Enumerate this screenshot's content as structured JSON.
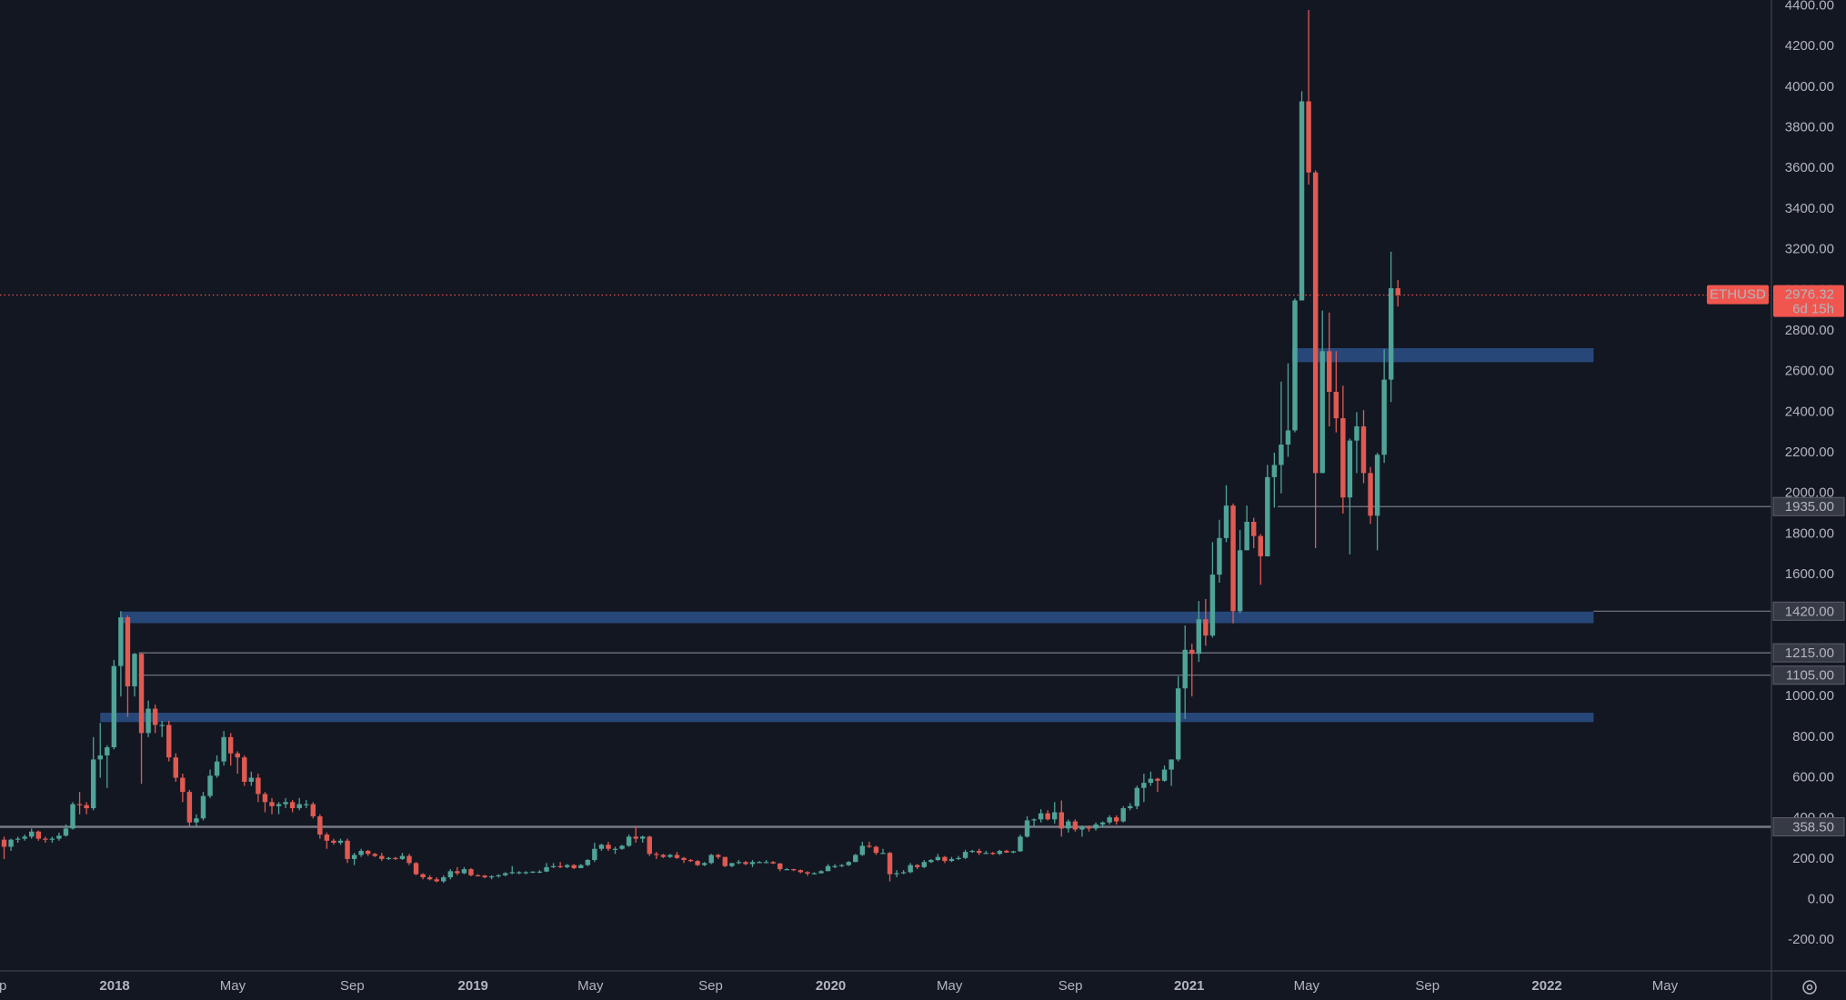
{
  "chart_data": {
    "type": "candlestick",
    "symbol": "ETHUSD",
    "up_color": "#4fa397",
    "down_color": "#e05a52",
    "zone_color": "#2d5088",
    "level_color": "#787b86",
    "last_color": "#f0564e",
    "open": [
      295,
      260,
      295,
      300,
      310,
      335,
      300,
      295,
      300,
      315,
      350,
      470,
      465,
      450,
      690,
      710,
      750,
      1150,
      1390,
      1050,
      1210,
      820,
      940,
      860,
      860,
      700,
      600,
      530,
      380,
      400,
      510,
      610,
      680,
      800,
      720,
      700,
      580,
      600,
      520,
      480,
      460,
      470,
      480,
      450,
      470,
      470,
      410,
      320,
      290,
      280,
      290,
      200,
      220,
      240,
      225,
      215,
      200,
      205,
      200,
      215,
      180,
      125,
      110,
      100,
      90,
      110,
      140,
      130,
      150,
      120,
      118,
      110,
      115,
      120,
      130,
      135,
      135,
      135,
      138,
      138,
      160,
      165,
      160,
      170,
      155,
      170,
      195,
      250,
      270,
      250,
      250,
      265,
      310,
      300,
      310,
      225,
      220,
      210,
      220,
      205,
      195,
      190,
      170,
      180,
      220,
      210,
      165,
      180,
      185,
      175,
      185,
      185,
      185,
      178,
      150,
      150,
      145,
      135,
      128,
      130,
      140,
      165,
      165,
      170,
      185,
      220,
      265,
      260,
      230,
      230,
      125,
      130,
      135,
      170,
      160,
      185,
      195,
      210,
      190,
      200,
      205,
      235,
      240,
      230,
      230,
      225,
      240,
      232,
      238,
      310,
      390,
      395,
      425,
      395,
      430,
      350,
      385,
      345,
      355,
      350,
      370,
      380,
      405,
      385,
      450,
      460,
      550,
      575,
      595,
      585,
      640,
      690,
      1040,
      1230,
      1210,
      1380,
      1300,
      1600,
      1780,
      1940,
      1420,
      1720,
      1860,
      1790,
      1690,
      2080,
      2140,
      2240,
      2310,
      2950,
      3930,
      3580,
      2100,
      2700,
      2500,
      2370,
      1980,
      2260,
      2330,
      2100,
      1890,
      2190,
      2560,
      3010
    ],
    "high": [
      310,
      300,
      310,
      320,
      350,
      340,
      310,
      310,
      330,
      370,
      480,
      530,
      480,
      800,
      870,
      760,
      1180,
      1420,
      1400,
      1215,
      1215,
      980,
      960,
      880,
      880,
      720,
      620,
      540,
      420,
      530,
      640,
      710,
      830,
      820,
      730,
      710,
      630,
      620,
      530,
      500,
      480,
      500,
      490,
      500,
      490,
      480,
      420,
      330,
      300,
      300,
      300,
      230,
      250,
      245,
      230,
      230,
      210,
      210,
      230,
      225,
      185,
      130,
      120,
      110,
      120,
      150,
      160,
      160,
      155,
      125,
      122,
      120,
      125,
      135,
      165,
      140,
      140,
      140,
      145,
      180,
      180,
      185,
      175,
      175,
      175,
      200,
      280,
      275,
      285,
      260,
      270,
      320,
      360,
      315,
      315,
      235,
      225,
      225,
      235,
      210,
      200,
      195,
      185,
      225,
      225,
      210,
      180,
      195,
      190,
      195,
      190,
      195,
      190,
      180,
      155,
      152,
      148,
      140,
      135,
      145,
      175,
      175,
      175,
      190,
      225,
      285,
      285,
      265,
      250,
      235,
      145,
      145,
      180,
      175,
      195,
      200,
      225,
      215,
      210,
      215,
      245,
      245,
      250,
      240,
      235,
      245,
      245,
      240,
      320,
      410,
      400,
      445,
      440,
      480,
      488,
      395,
      395,
      365,
      365,
      380,
      385,
      415,
      415,
      460,
      475,
      560,
      620,
      630,
      600,
      660,
      690,
      1100,
      1350,
      1260,
      1470,
      1480,
      1760,
      1870,
      2040,
      1950,
      1820,
      1940,
      1880,
      1800,
      2140,
      2200,
      2550,
      2640,
      2960,
      3980,
      4380,
      3590,
      2900,
      2890,
      2700,
      2530,
      2270,
      2400,
      2410,
      2130,
      2200,
      2710,
      3190,
      3050
    ],
    "low": [
      200,
      240,
      280,
      290,
      300,
      290,
      280,
      280,
      290,
      310,
      345,
      420,
      420,
      440,
      600,
      550,
      740,
      1000,
      900,
      1000,
      570,
      800,
      820,
      800,
      680,
      580,
      480,
      360,
      360,
      390,
      500,
      600,
      660,
      660,
      620,
      560,
      560,
      480,
      430,
      420,
      420,
      450,
      430,
      440,
      450,
      400,
      300,
      250,
      270,
      270,
      180,
      170,
      210,
      215,
      210,
      190,
      195,
      195,
      195,
      170,
      120,
      100,
      95,
      85,
      82,
      100,
      120,
      125,
      115,
      115,
      105,
      100,
      108,
      115,
      125,
      125,
      125,
      130,
      130,
      135,
      155,
      155,
      155,
      150,
      155,
      165,
      185,
      240,
      240,
      225,
      245,
      260,
      280,
      280,
      215,
      200,
      205,
      205,
      200,
      180,
      185,
      165,
      165,
      175,
      200,
      160,
      160,
      175,
      170,
      160,
      180,
      180,
      175,
      140,
      145,
      140,
      130,
      117,
      124,
      128,
      140,
      155,
      160,
      165,
      185,
      215,
      255,
      220,
      225,
      90,
      110,
      125,
      130,
      150,
      155,
      180,
      190,
      180,
      185,
      195,
      200,
      230,
      220,
      225,
      220,
      220,
      230,
      228,
      235,
      305,
      360,
      380,
      390,
      375,
      310,
      330,
      335,
      310,
      335,
      340,
      355,
      370,
      370,
      380,
      440,
      445,
      480,
      560,
      530,
      580,
      560,
      680,
      890,
      1000,
      1170,
      1250,
      1290,
      1560,
      1760,
      1360,
      1410,
      1720,
      1730,
      1550,
      1690,
      1930,
      2000,
      2180,
      2300,
      2950,
      3520,
      1730,
      2100,
      2330,
      2300,
      1900,
      1700,
      2100,
      2050,
      1850,
      1720,
      2150,
      2450,
      2920
    ],
    "close": [
      260,
      295,
      300,
      310,
      335,
      300,
      295,
      300,
      315,
      350,
      470,
      465,
      450,
      690,
      710,
      750,
      1150,
      1390,
      1050,
      1210,
      820,
      940,
      860,
      860,
      700,
      600,
      530,
      380,
      400,
      510,
      610,
      680,
      800,
      720,
      700,
      580,
      600,
      520,
      480,
      460,
      470,
      480,
      450,
      470,
      470,
      410,
      320,
      290,
      280,
      290,
      200,
      220,
      240,
      225,
      215,
      200,
      205,
      200,
      215,
      180,
      125,
      110,
      100,
      90,
      110,
      140,
      130,
      150,
      120,
      118,
      110,
      115,
      120,
      130,
      135,
      135,
      135,
      138,
      138,
      160,
      165,
      160,
      170,
      155,
      170,
      195,
      250,
      270,
      250,
      250,
      265,
      310,
      300,
      310,
      225,
      220,
      210,
      220,
      205,
      195,
      190,
      170,
      180,
      220,
      210,
      165,
      180,
      185,
      175,
      185,
      185,
      185,
      178,
      150,
      150,
      145,
      135,
      128,
      130,
      140,
      165,
      165,
      170,
      185,
      220,
      265,
      260,
      230,
      230,
      125,
      130,
      135,
      170,
      160,
      185,
      195,
      210,
      190,
      200,
      205,
      235,
      240,
      230,
      230,
      225,
      240,
      232,
      238,
      310,
      390,
      395,
      425,
      395,
      430,
      350,
      385,
      345,
      355,
      350,
      370,
      380,
      405,
      385,
      450,
      460,
      550,
      575,
      595,
      585,
      640,
      690,
      1040,
      1230,
      1210,
      1380,
      1300,
      1600,
      1780,
      1940,
      1420,
      1720,
      1860,
      1790,
      1690,
      2080,
      2140,
      2240,
      2310,
      2950,
      3930,
      3580,
      2100,
      2700,
      2500,
      2370,
      1980,
      2260,
      2330,
      2100,
      1890,
      2190,
      2560,
      3010,
      2976.32
    ],
    "xlim": [
      -0.6,
      257.4
    ],
    "xticks": [
      {
        "value": -1.4,
        "label": "Sep"
      },
      {
        "value": 16.1,
        "label": "2018"
      },
      {
        "value": 33.3,
        "label": "May"
      },
      {
        "value": 50.7,
        "label": "Sep"
      },
      {
        "value": 68.3,
        "label": "2019"
      },
      {
        "value": 85.4,
        "label": "May"
      },
      {
        "value": 102.9,
        "label": "Sep"
      },
      {
        "value": 120.4,
        "label": "2020"
      },
      {
        "value": 137.7,
        "label": "May"
      },
      {
        "value": 155.3,
        "label": "Sep"
      },
      {
        "value": 172.6,
        "label": "2021"
      },
      {
        "value": 189.7,
        "label": "May"
      },
      {
        "value": 207.3,
        "label": "Sep"
      },
      {
        "value": 224.7,
        "label": "2022"
      },
      {
        "value": 241.9,
        "label": "May"
      }
    ],
    "ylim": [
      -351,
      4429
    ],
    "yticks": [
      {
        "value": -200,
        "label": "-200.00"
      },
      {
        "value": 0,
        "label": "0.00"
      },
      {
        "value": 200,
        "label": "200.00"
      },
      {
        "value": 400,
        "label": "400.00"
      },
      {
        "value": 600,
        "label": "600.00"
      },
      {
        "value": 800,
        "label": "800.00"
      },
      {
        "value": 1000,
        "label": "1000.00"
      },
      {
        "value": 1200,
        "label": "1200.00"
      },
      {
        "value": 1400,
        "label": "1400.00"
      },
      {
        "value": 1600,
        "label": "1600.00"
      },
      {
        "value": 1800,
        "label": "1800.00"
      },
      {
        "value": 2000,
        "label": "2000.00"
      },
      {
        "value": 2200,
        "label": "2200.00"
      },
      {
        "value": 2400,
        "label": "2400.00"
      },
      {
        "value": 2600,
        "label": "2600.00"
      },
      {
        "value": 2800,
        "label": "2800.00"
      },
      {
        "value": 3000,
        "label": "3000.00"
      },
      {
        "value": 3200,
        "label": "3200.00"
      },
      {
        "value": 3400,
        "label": "3400.00"
      },
      {
        "value": 3600,
        "label": "3600.00"
      },
      {
        "value": 3800,
        "label": "3800.00"
      },
      {
        "value": 4000,
        "label": "4000.00"
      },
      {
        "value": 4200,
        "label": "4200.00"
      },
      {
        "value": 4400,
        "label": "4400.00"
      }
    ],
    "zones": [
      {
        "low": 2646,
        "high": 2715,
        "from": 187.6,
        "to": 231.5
      },
      {
        "low": 1361,
        "high": 1418,
        "from": 16.9,
        "to": 231.5
      },
      {
        "low": 874,
        "high": 920,
        "from": 14.0,
        "to": 231.5
      }
    ],
    "levels": [
      {
        "value": 1935,
        "label": "1935.00",
        "from": 185.5
      },
      {
        "value": 1420,
        "label": "1420.00",
        "from": 231.5
      },
      {
        "value": 1215,
        "label": "1215.00",
        "from": 19.6
      },
      {
        "value": 1105,
        "label": "1105.00",
        "from": 19.6
      },
      {
        "value": 358.5,
        "label": "358.50",
        "from": -0.6
      }
    ],
    "last": {
      "value": 2976.32,
      "countdown": "6d 15h"
    }
  }
}
